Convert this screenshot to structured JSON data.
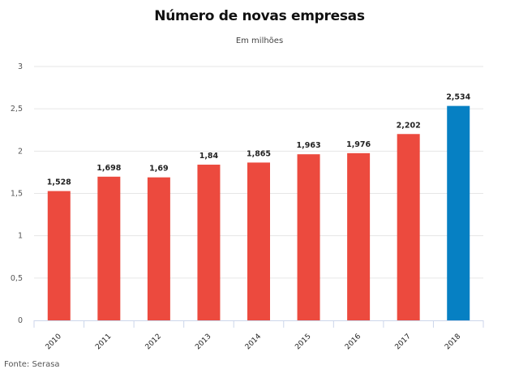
{
  "chart_data": {
    "type": "bar",
    "title": "Número de novas empresas",
    "subtitle": "Em milhões",
    "source": "Fonte: Serasa",
    "xlabel": "",
    "ylabel": "",
    "ylim": [
      0,
      3
    ],
    "yticks": [
      0,
      0.5,
      1,
      1.5,
      2,
      2.5,
      3
    ],
    "ytick_labels": [
      "0",
      "0,5",
      "1",
      "1,5",
      "2",
      "2,5",
      "3"
    ],
    "grid": true,
    "categories": [
      "2010",
      "2011",
      "2012",
      "2013",
      "2014",
      "2015",
      "2016",
      "2017",
      "2018"
    ],
    "values": [
      1.528,
      1.698,
      1.69,
      1.84,
      1.865,
      1.963,
      1.976,
      2.202,
      2.534
    ],
    "data_labels": [
      "1,528",
      "1,698",
      "1,69",
      "1,84",
      "1,865",
      "1,963",
      "1,976",
      "2,202",
      "2,534"
    ],
    "colors": {
      "default": "#ec4a3e",
      "highlight": "#0680c3",
      "highlight_category": "2018"
    }
  }
}
